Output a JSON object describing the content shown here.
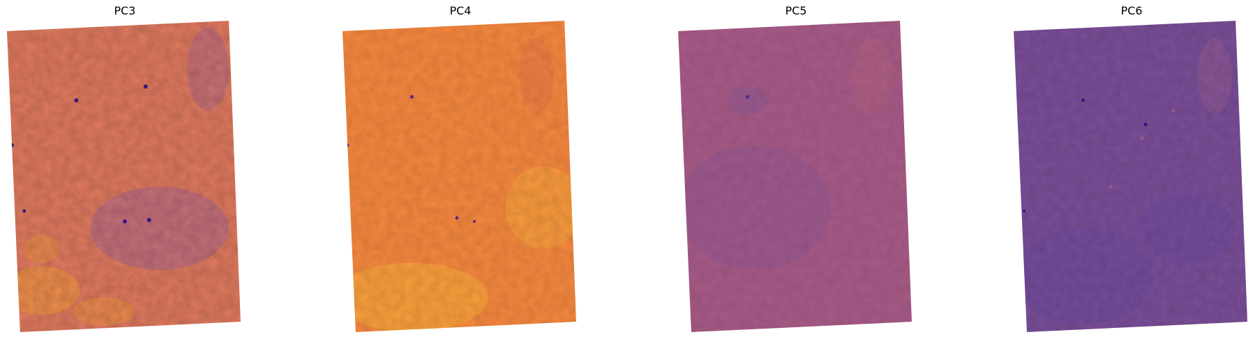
{
  "panels": [
    {
      "title": "PC3",
      "base_color": "#e07a5f",
      "colors": {
        "warm": "#f59a3c",
        "cool": "#9a5fa0",
        "dark": "#3a1a8a"
      }
    },
    {
      "title": "PC4",
      "base_color": "#f6883f",
      "colors": {
        "warm": "#fbb03b",
        "cool": "#e8744a",
        "dark": "#5a2a90"
      }
    },
    {
      "title": "PC5",
      "base_color": "#a65a86",
      "colors": {
        "warm": "#b8637c",
        "cool": "#8a5598",
        "dark": "#4a2f9a"
      }
    },
    {
      "title": "PC6",
      "base_color": "#7a4e98",
      "colors": {
        "warm": "#b06a8a",
        "cool": "#6a4aa0",
        "dark": "#2a1a8a"
      }
    }
  ]
}
